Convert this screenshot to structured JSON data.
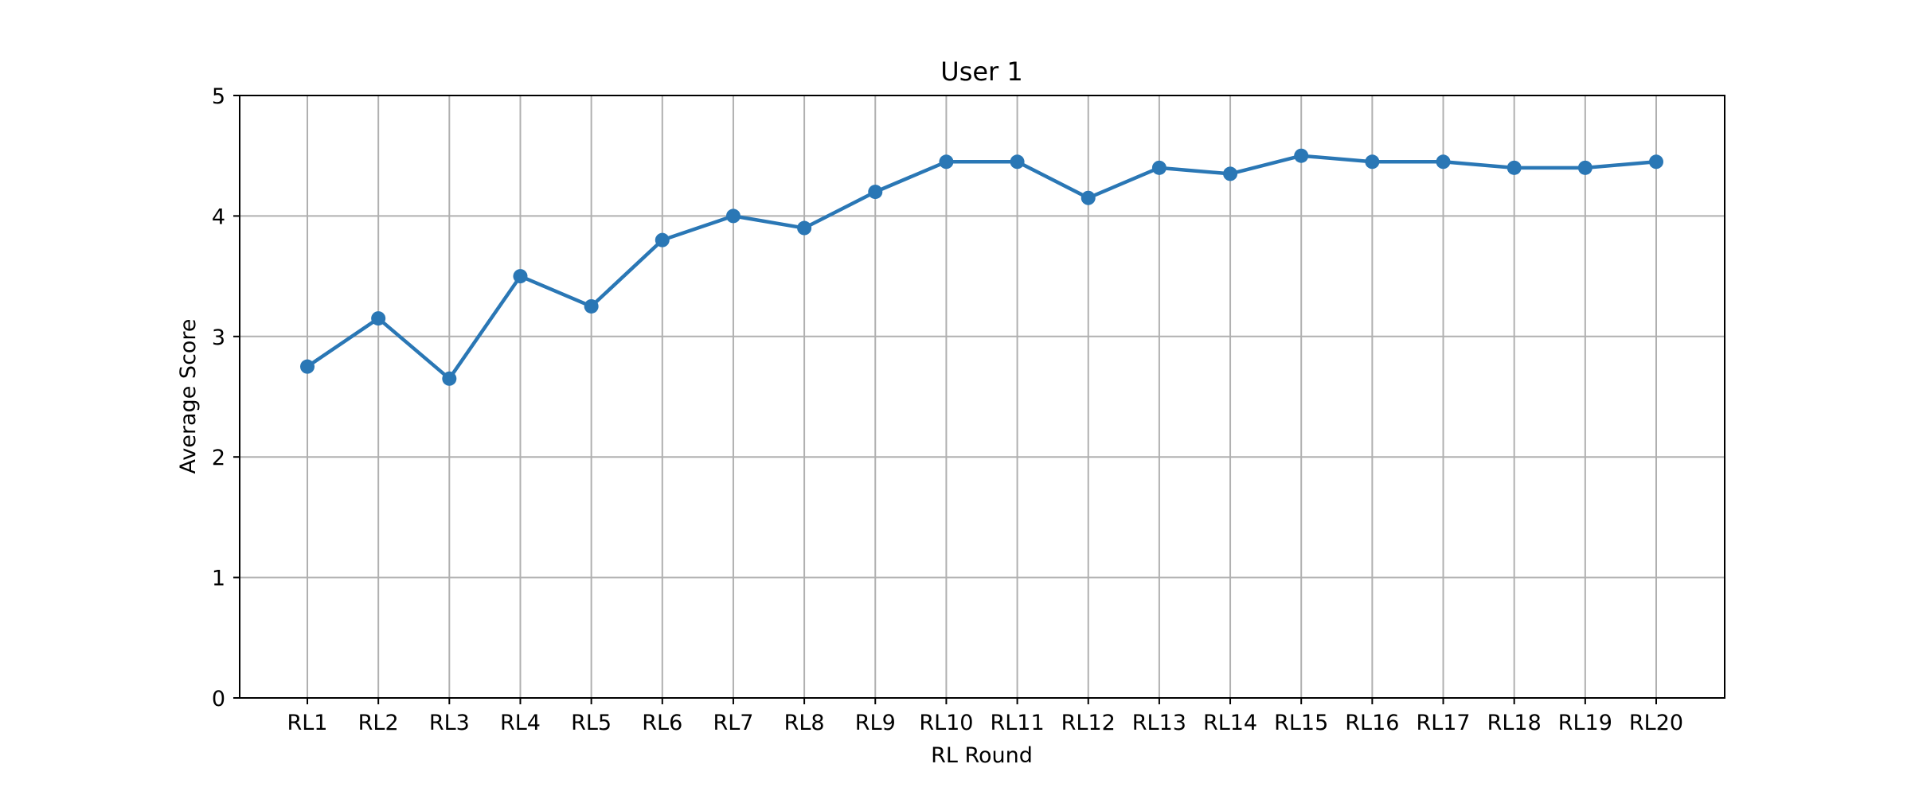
{
  "chart_data": {
    "type": "line",
    "title": "User 1",
    "xlabel": "RL Round",
    "ylabel": "Average Score",
    "categories": [
      "RL1",
      "RL2",
      "RL3",
      "RL4",
      "RL5",
      "RL6",
      "RL7",
      "RL8",
      "RL9",
      "RL10",
      "RL11",
      "RL12",
      "RL13",
      "RL14",
      "RL15",
      "RL16",
      "RL17",
      "RL18",
      "RL19",
      "RL20"
    ],
    "series": [
      {
        "values": [
          2.75,
          3.15,
          2.65,
          3.5,
          3.25,
          3.8,
          4.0,
          3.9,
          4.2,
          4.45,
          4.45,
          4.15,
          4.4,
          4.35,
          4.5,
          4.45,
          4.45,
          4.4,
          4.4,
          4.45
        ],
        "color": "#2a77b5",
        "marker": "circle"
      }
    ],
    "ylim": [
      0,
      5
    ],
    "yticks": [
      0,
      1,
      2,
      3,
      4,
      5
    ],
    "grid": true,
    "legend": "none"
  }
}
